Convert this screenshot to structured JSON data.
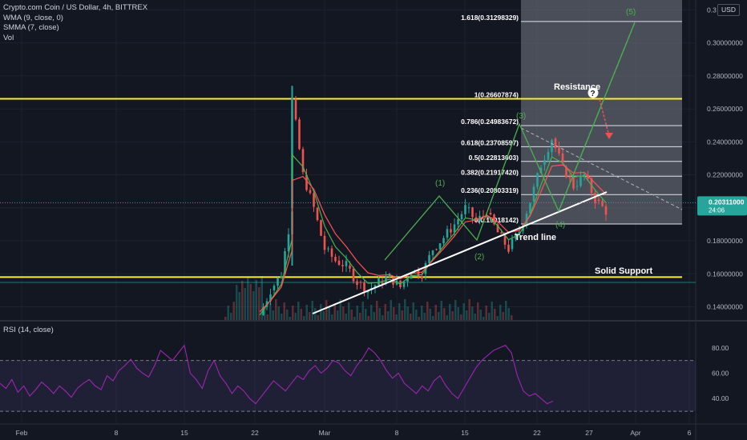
{
  "header": {
    "title": "Crypto.com Coin / US Dollar, 4h, BITTREX",
    "indicators": [
      "WMA (9, close, 0)",
      "SMMA (7, close)",
      "Vol"
    ],
    "rsi_label": "RSI (14, close)",
    "currency": "USD"
  },
  "colors": {
    "background": "#131722",
    "grid": "#1e2230",
    "bull": "#26a69a",
    "bear": "#ef5350",
    "wma": "#4caf50",
    "smma": "#ff5252",
    "support_resistance": "#ffeb3b",
    "fib_zone": "#787b86",
    "projection": "#4caf50",
    "rsi_line": "#9c27b0",
    "price_badge": "#26a69a"
  },
  "chart_data": [
    {
      "type": "candlestick",
      "panel": "price",
      "x_tick_labels": [
        "Feb",
        "8",
        "15",
        "22",
        "Mar",
        "8",
        "15",
        "22",
        "27",
        "Apr",
        "6"
      ],
      "y_ticks": [
        "0.14000000",
        "0.16000000",
        "0.18000000",
        "0.20000000",
        "0.22000000",
        "0.24000000",
        "0.26000000",
        "0.28000000",
        "0.30000000",
        "0.3"
      ],
      "ylim": [
        0.132,
        0.326
      ],
      "last_price": "0.20311000",
      "countdown": "24:06",
      "price_path": [
        [
          "Feb 23",
          0.135
        ],
        [
          "Feb 24",
          0.15
        ],
        [
          "Feb 25",
          0.16
        ],
        [
          "Feb 26",
          0.2
        ],
        [
          "Feb 26",
          0.266
        ],
        [
          "Feb 27",
          0.22
        ],
        [
          "Feb 28",
          0.2
        ],
        [
          "Mar 1",
          0.175
        ],
        [
          "Mar 2",
          0.168
        ],
        [
          "Mar 3",
          0.165
        ],
        [
          "Mar 4",
          0.155
        ],
        [
          "Mar 5",
          0.15
        ],
        [
          "Mar 6",
          0.155
        ],
        [
          "Mar 7",
          0.158
        ],
        [
          "Mar 8",
          0.152
        ],
        [
          "Mar 9",
          0.162
        ],
        [
          "Mar 10",
          0.16
        ],
        [
          "Mar 11",
          0.175
        ],
        [
          "Mar 12",
          0.182
        ],
        [
          "Mar 13",
          0.19
        ],
        [
          "Mar 14",
          0.2
        ],
        [
          "Mar 15",
          0.192
        ],
        [
          "Mar 16",
          0.197
        ],
        [
          "Mar 17",
          0.185
        ],
        [
          "Mar 18",
          0.175
        ],
        [
          "Mar 19",
          0.186
        ],
        [
          "Mar 20",
          0.204
        ],
        [
          "Mar 21",
          0.226
        ],
        [
          "Mar 22",
          0.242
        ],
        [
          "Mar 23",
          0.225
        ],
        [
          "Mar 24",
          0.213
        ],
        [
          "Mar 25",
          0.22
        ],
        [
          "Mar 26",
          0.205
        ],
        [
          "Mar 27",
          0.198
        ]
      ],
      "horizontal_levels": [
        {
          "name": "Resistance",
          "price": 0.2661
        },
        {
          "name": "Solid Support",
          "price": 0.158
        }
      ],
      "fibonacci": [
        {
          "label": "1.618(0.31298329)",
          "price": 0.31298329
        },
        {
          "label": "1(0.26607874)",
          "price": 0.26607874
        },
        {
          "label": "0.786(0.24983672)",
          "price": 0.24983672
        },
        {
          "label": "0.618(0.23708597)",
          "price": 0.23708597
        },
        {
          "label": "0.5(0.22813003)",
          "price": 0.22813003
        },
        {
          "label": "0.382(0.21917420)",
          "price": 0.2191742
        },
        {
          "label": "0.236(0.20803319)",
          "price": 0.20803319
        },
        {
          "label": "0(0.19018142)",
          "price": 0.19018142
        }
      ],
      "trend_line": {
        "label": "Trend line"
      },
      "wave_labels": [
        "(1)",
        "(2)",
        "(3)",
        "(4)",
        "(5)"
      ],
      "annotations": [
        "Resistance",
        "Solid Support",
        "Trend line",
        "?"
      ]
    },
    {
      "type": "line",
      "panel": "rsi",
      "title": "RSI (14, close)",
      "y_ticks": [
        "80.00",
        "60.00",
        "40.00"
      ],
      "ylim": [
        25,
        95
      ],
      "bands": [
        70,
        30
      ],
      "values": [
        52,
        48,
        55,
        45,
        50,
        42,
        47,
        53,
        49,
        44,
        50,
        46,
        41,
        48,
        52,
        55,
        50,
        47,
        58,
        54,
        62,
        66,
        71,
        64,
        60,
        57,
        66,
        78,
        74,
        70,
        76,
        82,
        60,
        55,
        48,
        62,
        70,
        58,
        52,
        44,
        50,
        46,
        40,
        36,
        42,
        48,
        54,
        50,
        46,
        52,
        58,
        55,
        62,
        66,
        60,
        64,
        70,
        68,
        62,
        58,
        66,
        72,
        80,
        76,
        70,
        62,
        56,
        60,
        52,
        48,
        44,
        50,
        46,
        54,
        58,
        50,
        44,
        40,
        48,
        56,
        64,
        70,
        74,
        78,
        80,
        82,
        76,
        58,
        46,
        42,
        44,
        40,
        36,
        38
      ]
    }
  ]
}
